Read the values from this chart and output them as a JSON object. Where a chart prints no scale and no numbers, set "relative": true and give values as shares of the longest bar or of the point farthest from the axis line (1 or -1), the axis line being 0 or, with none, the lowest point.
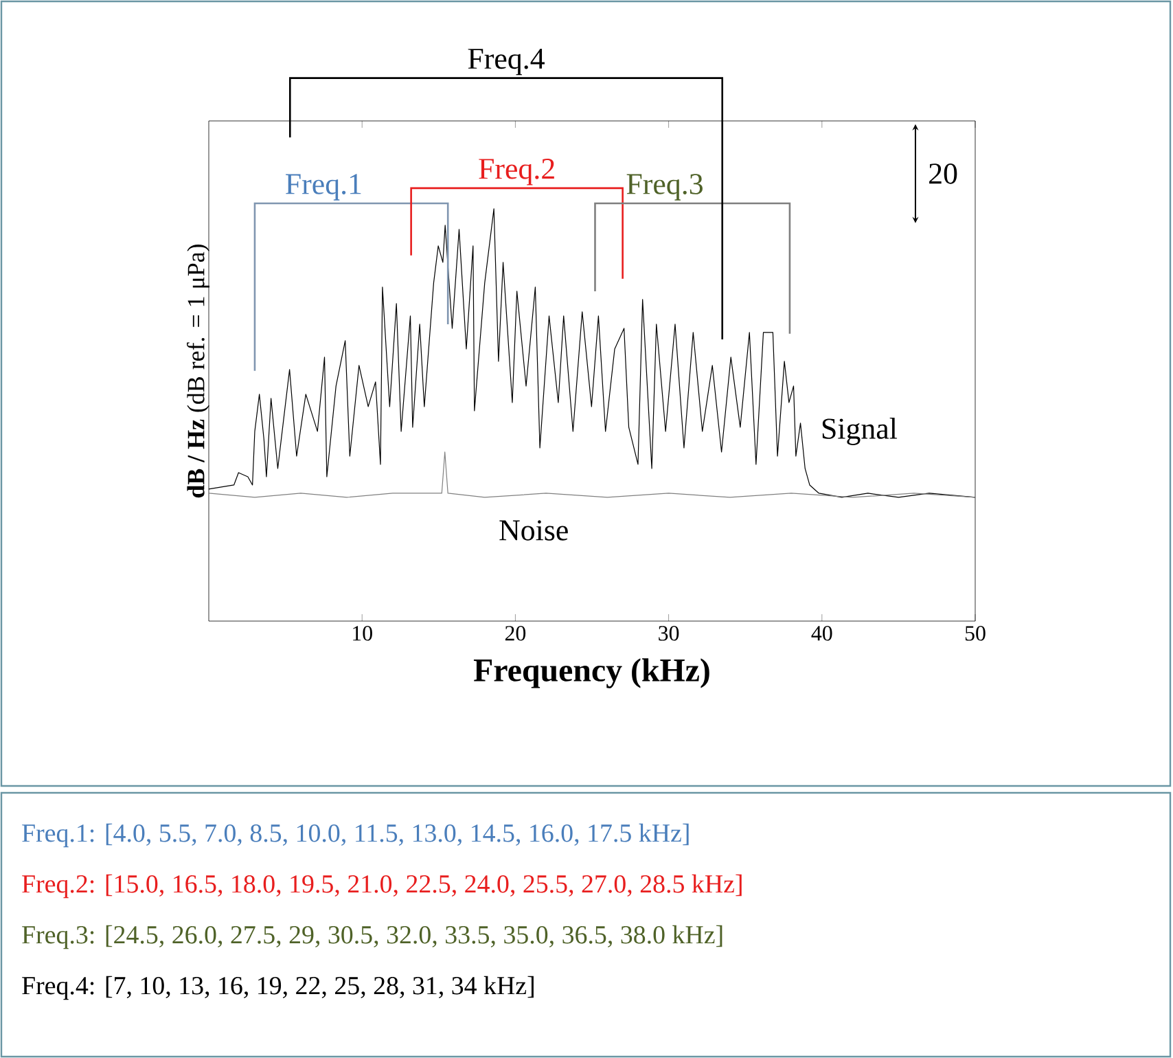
{
  "chart_data": {
    "type": "line",
    "relative": true,
    "xlabel": "Frequency (kHz)",
    "ylabel": "**dB / Hz** (dB ref. = 1 μPa)",
    "xlim": [
      0,
      50
    ],
    "xticks": [
      10,
      20,
      30,
      40,
      50
    ],
    "series": [
      {
        "name": "Signal",
        "color": "#000000",
        "x": [
          0,
          1.64,
          1.94,
          2.55,
          2.85,
          3.0,
          3.3,
          3.6,
          3.76,
          4.06,
          4.5,
          5.27,
          5.73,
          6.33,
          7.09,
          7.55,
          7.7,
          8.3,
          8.9,
          9.2,
          9.8,
          10.4,
          10.88,
          11.2,
          11.33,
          11.8,
          12.24,
          12.55,
          13.15,
          13.3,
          13.76,
          14.06,
          14.67,
          14.97,
          15.27,
          15.42,
          15.88,
          16.33,
          16.8,
          17.24,
          17.33,
          18.0,
          18.6,
          18.9,
          19.2,
          19.8,
          20.1,
          20.7,
          21.3,
          21.6,
          22.2,
          22.8,
          23.15,
          23.76,
          24.36,
          24.97,
          25.42,
          25.88,
          26.48,
          27.09,
          27.4,
          28.0,
          28.3,
          28.9,
          29.2,
          29.8,
          30.42,
          31.0,
          31.6,
          32.2,
          32.85,
          33.45,
          34.06,
          34.67,
          35.27,
          35.7,
          36.18,
          36.8,
          37.1,
          37.55,
          37.85,
          38.15,
          38.3,
          38.6,
          38.9,
          39.2,
          39.8,
          41.3,
          43,
          45,
          47,
          50
        ],
        "values": [
          0.32,
          0.33,
          0.36,
          0.35,
          0.33,
          0.46,
          0.55,
          0.44,
          0.35,
          0.54,
          0.37,
          0.61,
          0.4,
          0.55,
          0.46,
          0.64,
          0.35,
          0.57,
          0.68,
          0.4,
          0.62,
          0.52,
          0.58,
          0.38,
          0.81,
          0.52,
          0.77,
          0.46,
          0.74,
          0.47,
          0.72,
          0.52,
          0.82,
          0.91,
          0.87,
          0.96,
          0.71,
          0.95,
          0.66,
          0.91,
          0.51,
          0.82,
          1.0,
          0.63,
          0.87,
          0.53,
          0.8,
          0.57,
          0.81,
          0.42,
          0.74,
          0.53,
          0.74,
          0.46,
          0.75,
          0.52,
          0.74,
          0.46,
          0.66,
          0.71,
          0.47,
          0.38,
          0.78,
          0.37,
          0.72,
          0.46,
          0.72,
          0.42,
          0.7,
          0.46,
          0.62,
          0.41,
          0.64,
          0.47,
          0.7,
          0.38,
          0.7,
          0.7,
          0.4,
          0.63,
          0.53,
          0.57,
          0.4,
          0.48,
          0.37,
          0.33,
          0.31,
          0.3,
          0.31,
          0.3,
          0.31,
          0.3
        ]
      },
      {
        "name": "Noise",
        "color": "#808080",
        "x": [
          0,
          3,
          6,
          9,
          12,
          15.2,
          15.4,
          15.6,
          18,
          22,
          26,
          30,
          34,
          38,
          42,
          46,
          50
        ],
        "values": [
          0.31,
          0.3,
          0.31,
          0.3,
          0.31,
          0.31,
          0.41,
          0.31,
          0.3,
          0.31,
          0.3,
          0.31,
          0.3,
          0.31,
          0.3,
          0.31,
          0.3
        ]
      }
    ],
    "annotations": [
      "Freq.1",
      "Freq.2",
      "Freq.3",
      "Freq.4",
      "20",
      "Freq.1: [4.0, 5.5, 7.0, 8.5, 10.0, 11.5, 13.0, 14.5, 16.0, 17.5 kHz]",
      "Freq.2: [15.0, 16.5, 18.0, 19.5, 21.0, 22.5, 24.0, 25.5, 27.0, 28.5 kHz]",
      "Freq.3: [24.5, 26.0, 27.5, 29, 30.5, 32.0, 33.5, 35.0, 36.5, 38.0 kHz]",
      "Freq.4: [7, 10, 13, 16, 19, 22, 25, 28, 31, 34 kHz]"
    ]
  }
}
